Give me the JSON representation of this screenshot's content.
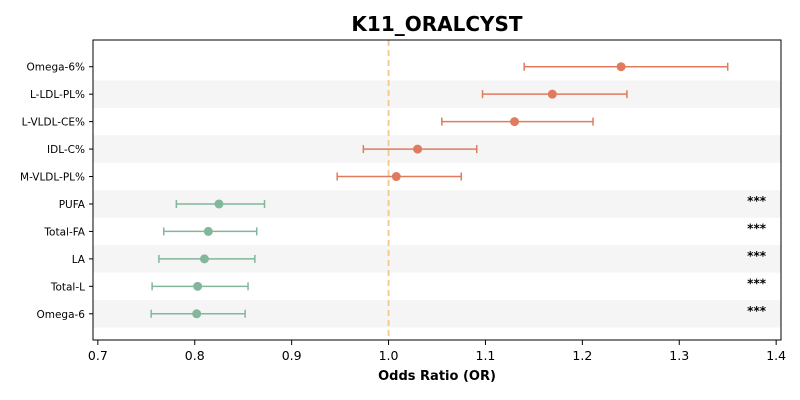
{
  "chart_data": {
    "type": "scatter",
    "title": "K11_ORALCYST",
    "xlabel": "Odds Ratio (OR)",
    "ylabel": "",
    "xlim": [
      0.695,
      1.405
    ],
    "xticks": [
      0.7,
      0.8,
      0.9,
      1.0,
      1.1,
      1.2,
      1.3,
      1.4
    ],
    "xtick_labels": [
      "0.7",
      "0.8",
      "0.9",
      "1.0",
      "1.1",
      "1.2",
      "1.3",
      "1.4"
    ],
    "reference_line": 1.0,
    "grid": false,
    "legend": "none",
    "colors": {
      "positive": "#e07b5f",
      "negative": "#82b79b",
      "reference_line": "#f2c98a",
      "band": "#f5f5f5"
    },
    "rows": [
      {
        "label": "Omega-6%",
        "or": 1.24,
        "ci_low": 1.14,
        "ci_high": 1.35,
        "significance": ""
      },
      {
        "label": "L-LDL-PL%",
        "or": 1.169,
        "ci_low": 1.097,
        "ci_high": 1.246,
        "significance": ""
      },
      {
        "label": "L-VLDL-CE%",
        "or": 1.13,
        "ci_low": 1.055,
        "ci_high": 1.211,
        "significance": ""
      },
      {
        "label": "IDL-C%",
        "or": 1.03,
        "ci_low": 0.974,
        "ci_high": 1.091,
        "significance": ""
      },
      {
        "label": "M-VLDL-PL%",
        "or": 1.008,
        "ci_low": 0.947,
        "ci_high": 1.075,
        "significance": ""
      },
      {
        "label": "PUFA",
        "or": 0.825,
        "ci_low": 0.781,
        "ci_high": 0.872,
        "significance": "***"
      },
      {
        "label": "Total-FA",
        "or": 0.814,
        "ci_low": 0.768,
        "ci_high": 0.864,
        "significance": "***"
      },
      {
        "label": "LA",
        "or": 0.81,
        "ci_low": 0.763,
        "ci_high": 0.862,
        "significance": "***"
      },
      {
        "label": "Total-L",
        "or": 0.803,
        "ci_low": 0.756,
        "ci_high": 0.855,
        "significance": "***"
      },
      {
        "label": "Omega-6",
        "or": 0.802,
        "ci_low": 0.755,
        "ci_high": 0.852,
        "significance": "***"
      }
    ]
  }
}
